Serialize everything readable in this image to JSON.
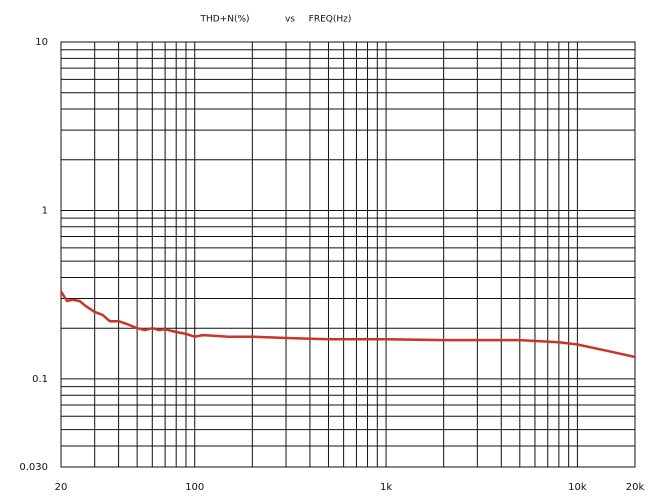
{
  "chart_data": {
    "type": "line",
    "title": [
      "THD+N(%)",
      "vs",
      "FREQ(Hz)"
    ],
    "x": [
      20,
      21.5,
      23,
      25,
      27,
      30,
      33,
      36,
      40,
      45,
      50,
      55,
      60,
      65,
      70,
      80,
      90,
      100,
      110,
      130,
      150,
      200,
      300,
      500,
      1000,
      2000,
      5000,
      8000,
      10000,
      15000,
      20000
    ],
    "series": [
      {
        "name": "THD+N",
        "color": "#c8352a",
        "values": [
          0.33,
          0.29,
          0.295,
          0.29,
          0.27,
          0.25,
          0.24,
          0.22,
          0.22,
          0.21,
          0.2,
          0.195,
          0.2,
          0.195,
          0.197,
          0.19,
          0.185,
          0.178,
          0.182,
          0.18,
          0.178,
          0.178,
          0.175,
          0.172,
          0.172,
          0.17,
          0.17,
          0.165,
          0.16,
          0.145,
          0.135
        ]
      }
    ],
    "xscale": "log",
    "yscale": "log",
    "xlim": [
      20,
      20000
    ],
    "ylim": [
      0.03,
      10
    ],
    "xticks": [
      20,
      100,
      {
        "value": 1000,
        "label": "1k"
      },
      {
        "value": 10000,
        "label": "10k"
      },
      {
        "value": 20000,
        "label": "20k"
      }
    ],
    "yticks": [
      10,
      1,
      0.1,
      {
        "value": 0.03,
        "label": "0.030"
      }
    ],
    "x_minor_grid": [
      30,
      40,
      50,
      60,
      70,
      80,
      90,
      200,
      300,
      400,
      500,
      600,
      700,
      800,
      900,
      2000,
      3000,
      4000,
      5000,
      6000,
      7000,
      8000,
      9000
    ],
    "y_minor_grid": [
      0.04,
      0.05,
      0.06,
      0.07,
      0.08,
      0.09,
      0.2,
      0.3,
      0.4,
      0.5,
      0.6,
      0.7,
      0.8,
      0.9,
      2,
      3,
      4,
      5,
      6,
      7,
      8,
      9
    ],
    "grid": true
  }
}
